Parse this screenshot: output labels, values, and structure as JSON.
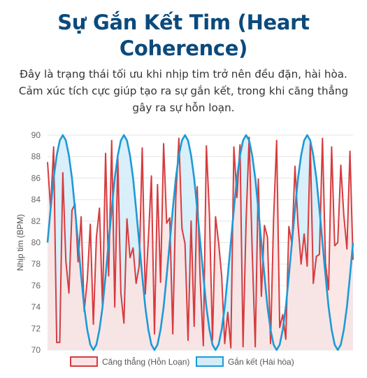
{
  "header": {
    "title": "Sự Gắn Kết Tim (Heart Coherence)",
    "description": "Đây là trạng thái tối ưu khi nhịp tim trở nên đều đặn, hài hòa. Cảm xúc tích cực giúp tạo ra sự gắn kết, trong khi căng thẳng gây ra sự hỗn loạn."
  },
  "chart_data": {
    "type": "area",
    "title": "",
    "xlabel": "",
    "ylabel": "Nhịp tim (BPM)",
    "ylim": [
      70,
      90
    ],
    "yticks": [
      70,
      72,
      74,
      76,
      78,
      80,
      82,
      84,
      86,
      88,
      90
    ],
    "grid": true,
    "legend_position": "bottom",
    "x": [
      0,
      1,
      2,
      3,
      4,
      5,
      6,
      7,
      8,
      9,
      10,
      11,
      12,
      13,
      14,
      15,
      16,
      17,
      18,
      19,
      20,
      21,
      22,
      23,
      24,
      25,
      26,
      27,
      28,
      29,
      30,
      31,
      32,
      33,
      34,
      35,
      36,
      37,
      38,
      39,
      40,
      41,
      42,
      43,
      44,
      45,
      46,
      47,
      48,
      49,
      50,
      51,
      52,
      53,
      54,
      55,
      56,
      57,
      58,
      59,
      60,
      61,
      62,
      63,
      64,
      65,
      66,
      67,
      68,
      69,
      70,
      71,
      72,
      73,
      74,
      75,
      76,
      77,
      78,
      79,
      80,
      81,
      82,
      83,
      84,
      85,
      86,
      87,
      88,
      89,
      90,
      91,
      92,
      93,
      94,
      95,
      96,
      97,
      98,
      99,
      100
    ],
    "series": [
      {
        "name": "Căng thẳng (Hỗn Loạn)",
        "color": "#d63c3f",
        "fill": "#fbe3e3",
        "values": [
          87.5,
          83.2,
          88.9,
          70.7,
          70.7,
          86.5,
          78.3,
          75.3,
          83.0,
          83.6,
          78.2,
          82.4,
          73.6,
          76.5,
          81.7,
          72.4,
          80.5,
          83.2,
          74.0,
          88.3,
          76.9,
          89.5,
          74.0,
          87.8,
          75.3,
          72.5,
          82.2,
          78.6,
          79.5,
          76.2,
          77.8,
          88.8,
          75.2,
          80.3,
          86.2,
          71.5,
          85.4,
          76.3,
          89.2,
          81.8,
          82.3,
          71.5,
          84.3,
          89.7,
          81.3,
          79.9,
          70.9,
          82.0,
          72.2,
          85.2,
          76.3,
          70.4,
          89.0,
          82.6,
          70.9,
          82.4,
          80.0,
          76.9,
          70.6,
          73.5,
          70.2,
          88.9,
          84.2,
          89.1,
          70.3,
          82.0,
          89.8,
          79.2,
          70.3,
          85.9,
          75.0,
          81.6,
          80.5,
          70.6,
          82.2,
          89.5,
          72.1,
          73.3,
          71.0,
          81.5,
          79.9,
          87.1,
          81.7,
          78.0,
          80.8,
          77.8,
          89.2,
          76.2,
          78.7,
          78.9,
          89.7,
          78.1,
          75.6,
          88.9,
          79.7,
          80.0,
          87.2,
          82.5,
          79.4,
          88.5,
          78.4
        ]
      },
      {
        "name": "Gắn kết (Hài hòa)",
        "color": "#1d9ad6",
        "fill": "#d2ecf8",
        "values": [
          80.0,
          83.1,
          86.0,
          88.1,
          89.5,
          90.0,
          89.5,
          88.1,
          86.0,
          83.1,
          80.0,
          76.9,
          74.0,
          71.9,
          70.5,
          70.0,
          70.5,
          71.9,
          74.0,
          76.9,
          80.0,
          83.1,
          86.0,
          88.1,
          89.5,
          90.0,
          89.5,
          88.1,
          86.0,
          83.1,
          80.0,
          76.9,
          74.0,
          71.9,
          70.5,
          70.0,
          70.5,
          71.9,
          74.0,
          76.9,
          80.0,
          83.1,
          86.0,
          88.1,
          89.5,
          90.0,
          89.5,
          88.1,
          86.0,
          83.1,
          80.0,
          76.9,
          74.0,
          71.9,
          70.5,
          70.0,
          70.5,
          71.9,
          74.0,
          76.9,
          80.0,
          83.1,
          86.0,
          88.1,
          89.5,
          90.0,
          89.5,
          88.1,
          86.0,
          83.1,
          80.0,
          76.9,
          74.0,
          71.9,
          70.5,
          70.0,
          70.5,
          71.9,
          74.0,
          76.9,
          80.0,
          83.1,
          86.0,
          88.1,
          89.5,
          90.0,
          89.5,
          88.1,
          86.0,
          83.1,
          80.0,
          76.9,
          74.0,
          71.9,
          70.5,
          70.0,
          70.5,
          71.9,
          74.0,
          76.9,
          80.0
        ]
      }
    ]
  }
}
